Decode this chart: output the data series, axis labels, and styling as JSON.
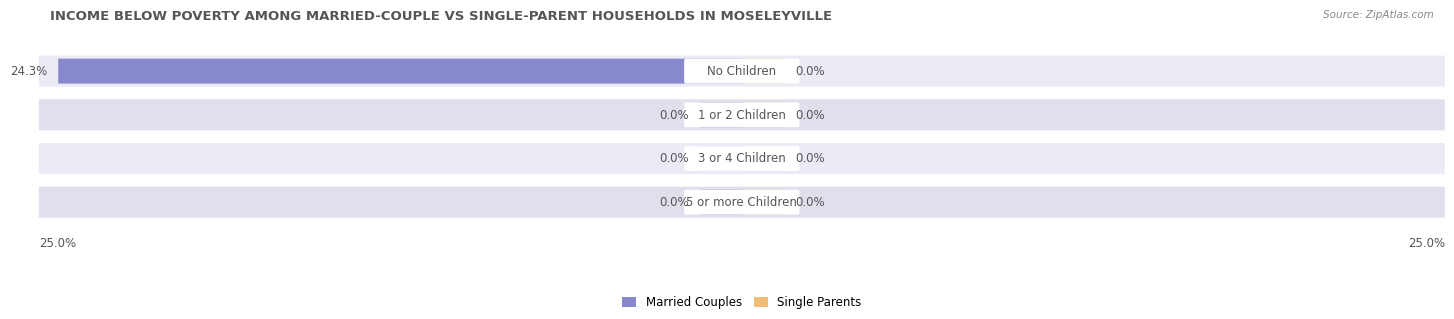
{
  "title": "INCOME BELOW POVERTY AMONG MARRIED-COUPLE VS SINGLE-PARENT HOUSEHOLDS IN MOSELEYVILLE",
  "source": "Source: ZipAtlas.com",
  "categories": [
    "No Children",
    "1 or 2 Children",
    "3 or 4 Children",
    "5 or more Children"
  ],
  "married_values": [
    24.3,
    0.0,
    0.0,
    0.0
  ],
  "single_values": [
    0.0,
    0.0,
    0.0,
    0.0
  ],
  "married_color": "#8888cc",
  "single_color": "#f0bc78",
  "row_bg_color_odd": "#ebebf5",
  "row_bg_color_even": "#e0e0ec",
  "max_value": 25.0,
  "stub_size": 1.5,
  "title_fontsize": 9.5,
  "label_fontsize": 8.5,
  "category_fontsize": 8.5,
  "legend_fontsize": 8.5,
  "axis_label_fontsize": 8.5,
  "background_color": "#ffffff",
  "title_color": "#555555",
  "source_color": "#888888",
  "text_color": "#555555",
  "pill_bg_color": "#ffffff"
}
